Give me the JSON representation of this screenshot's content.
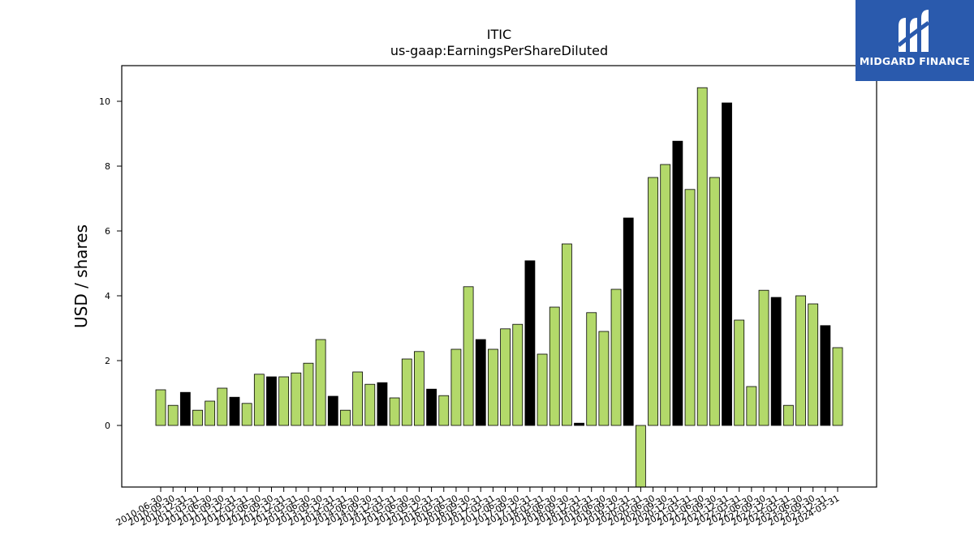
{
  "brand": {
    "name": "MIDGARD FINANCE",
    "background_color": "#2a5aad"
  },
  "colors": {
    "green": "#b3d96a",
    "black": "#000000"
  },
  "chart_data": {
    "type": "bar",
    "title": "ITIC",
    "subtitle": "us-gaap:EarningsPerShareDiluted",
    "xlabel": "",
    "ylabel": "USD / shares",
    "ylim": [
      -1.9,
      11.1
    ],
    "yticks": [
      0,
      2,
      4,
      6,
      8,
      10
    ],
    "grid": false,
    "categories": [
      "2010-06-30",
      "2010-09-30",
      "2010-12-31",
      "2011-03-31",
      "2011-06-30",
      "2011-09-30",
      "2011-12-31",
      "2012-03-31",
      "2012-06-30",
      "2012-09-30",
      "2012-12-31",
      "2013-03-31",
      "2013-06-30",
      "2013-09-30",
      "2013-12-31",
      "2014-03-31",
      "2014-06-30",
      "2014-09-30",
      "2014-12-31",
      "2015-03-31",
      "2015-06-30",
      "2015-09-30",
      "2015-12-31",
      "2016-03-31",
      "2016-06-30",
      "2016-09-30",
      "2016-12-31",
      "2017-03-31",
      "2017-06-30",
      "2017-09-30",
      "2017-12-31",
      "2018-03-31",
      "2018-06-30",
      "2018-09-30",
      "2018-12-31",
      "2019-03-31",
      "2019-06-30",
      "2019-09-30",
      "2019-12-31",
      "2020-03-31",
      "2020-06-30",
      "2020-09-30",
      "2020-12-31",
      "2021-03-31",
      "2021-06-30",
      "2021-09-30",
      "2021-12-31",
      "2022-03-31",
      "2022-06-30",
      "2022-09-30",
      "2022-12-31",
      "2023-03-31",
      "2023-06-30",
      "2023-09-30",
      "2023-12-31",
      "2024-03-31"
    ],
    "values": [
      1.1,
      0.62,
      1.02,
      0.47,
      0.75,
      1.15,
      0.87,
      0.68,
      1.58,
      1.5,
      1.5,
      1.62,
      1.92,
      2.65,
      0.9,
      0.47,
      1.65,
      1.27,
      1.32,
      0.85,
      2.05,
      2.28,
      1.12,
      0.92,
      2.35,
      4.28,
      2.65,
      2.35,
      2.98,
      3.12,
      5.08,
      2.2,
      3.65,
      5.6,
      0.07,
      3.48,
      2.9,
      4.2,
      6.4,
      -1.9,
      7.65,
      8.05,
      8.77,
      7.28,
      10.42,
      7.65,
      9.95,
      3.25,
      1.2,
      4.17,
      3.95,
      0.62,
      4.0,
      3.75,
      3.08,
      2.4
    ],
    "bar_colors": [
      "green",
      "green",
      "black",
      "green",
      "green",
      "green",
      "black",
      "green",
      "green",
      "black",
      "green",
      "green",
      "green",
      "green",
      "black",
      "green",
      "green",
      "green",
      "black",
      "green",
      "green",
      "green",
      "black",
      "green",
      "green",
      "green",
      "black",
      "green",
      "green",
      "green",
      "black",
      "green",
      "green",
      "green",
      "black",
      "green",
      "green",
      "green",
      "black",
      "green",
      "green",
      "green",
      "black",
      "green",
      "green",
      "green",
      "black",
      "green",
      "green",
      "green",
      "black",
      "green",
      "green",
      "green",
      "black",
      "green"
    ]
  }
}
